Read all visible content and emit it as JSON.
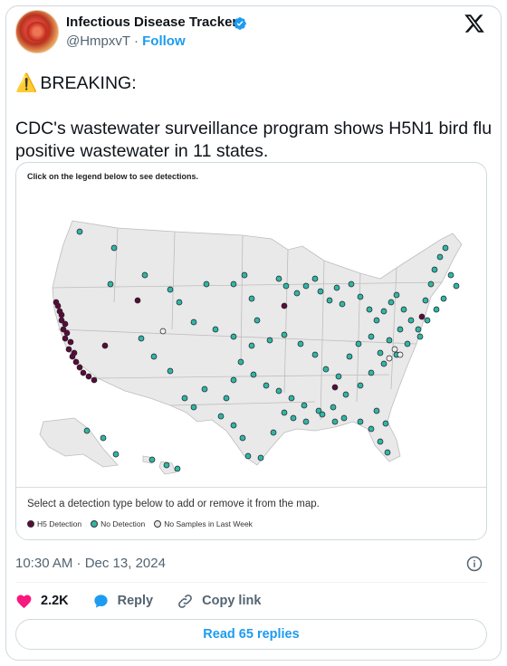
{
  "author": {
    "name": "Infectious Disease Tracker",
    "handle": "@HmpxvT",
    "separator": "·",
    "follow_label": "Follow"
  },
  "tweet": {
    "line1_emoji": "⚠️",
    "line1": "BREAKING:",
    "line2": "CDC's wastewater surveillance program shows H5N1 bird flu positive wastewater in 11 states."
  },
  "media": {
    "hint": "Click on the legend below to see detections.",
    "legend_title": "Select a detection type below to add or remove it from the map.",
    "legend": [
      {
        "label": "H5 Detection",
        "color": "#5b0a3d"
      },
      {
        "label": "No Detection",
        "color": "#2fb6a7"
      },
      {
        "label": "No Samples in Last Week",
        "color": "#e6e6e6"
      }
    ]
  },
  "meta": {
    "timestamp": "10:30 AM · Dec 13, 2024"
  },
  "actions": {
    "likes": "2.2K",
    "reply_label": "Reply",
    "copy_label": "Copy link"
  },
  "read_replies_label": "Read 65 replies",
  "colors": {
    "accent": "#1d9bf0",
    "like": "#f91880",
    "h5": "#5b0a3d",
    "none": "#2fb6a7"
  }
}
